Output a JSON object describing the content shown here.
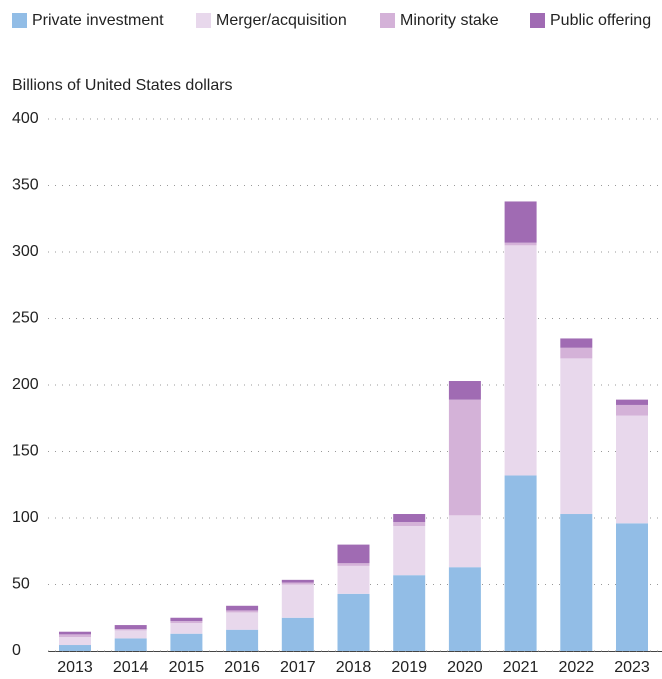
{
  "chart_data": {
    "type": "bar",
    "stacked": true,
    "subtitle": "Billions of United States dollars",
    "categories": [
      "2013",
      "2014",
      "2015",
      "2016",
      "2017",
      "2018",
      "2019",
      "2020",
      "2021",
      "2022",
      "2023"
    ],
    "series": [
      {
        "name": "Private investment",
        "color": "#92bde6",
        "values": [
          4.5,
          9.5,
          13,
          16,
          25,
          43,
          57,
          63,
          132,
          103,
          96
        ]
      },
      {
        "name": "Merger/acquisition",
        "color": "#e8d8ec",
        "values": [
          6,
          6,
          8,
          13,
          25,
          21,
          37,
          39,
          173,
          117,
          81
        ]
      },
      {
        "name": "Minority stake",
        "color": "#d4b2d8",
        "values": [
          2,
          1,
          1.5,
          1.5,
          1.5,
          2,
          3,
          87,
          2,
          8,
          8
        ]
      },
      {
        "name": "Public offering",
        "color": "#a06bb3",
        "values": [
          2,
          3,
          2.5,
          3.5,
          2,
          14,
          6,
          14,
          31,
          7,
          4
        ]
      }
    ],
    "ylim": [
      0,
      400
    ],
    "yticks": [
      0,
      50,
      100,
      150,
      200,
      250,
      300,
      350,
      400
    ],
    "grid": true,
    "legend": "top"
  }
}
